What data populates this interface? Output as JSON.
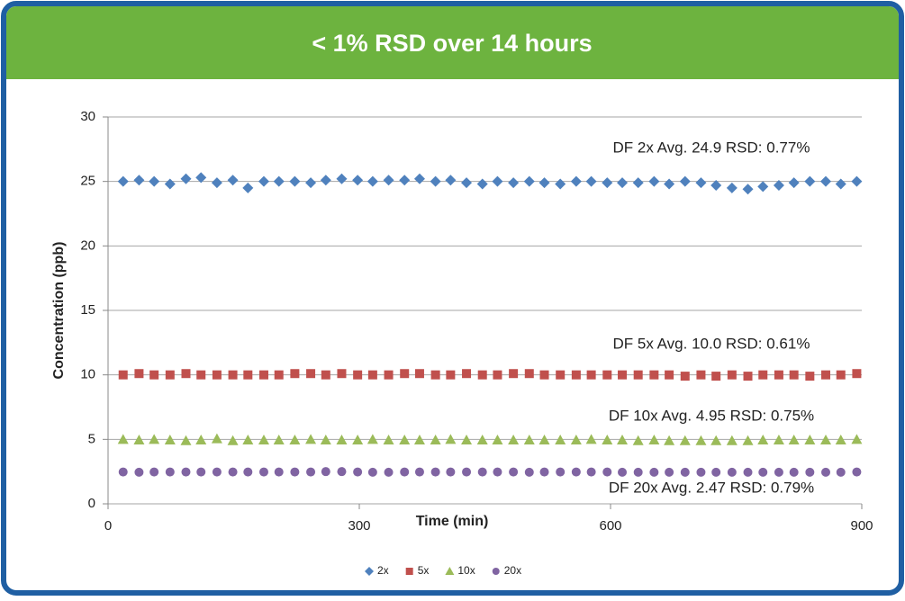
{
  "chart_data": {
    "type": "scatter",
    "title": "< 1% RSD over 14 hours",
    "xlabel": "Time (min)",
    "ylabel": "Concentration (ppb)",
    "x": [
      18,
      37,
      55,
      74,
      93,
      111,
      130,
      149,
      167,
      186,
      204,
      223,
      242,
      260,
      279,
      298,
      316,
      335,
      354,
      372,
      391,
      409,
      428,
      447,
      465,
      484,
      503,
      521,
      540,
      559,
      577,
      596,
      614,
      633,
      652,
      670,
      689,
      708,
      726,
      745,
      764,
      782,
      801,
      819,
      838,
      857,
      875,
      894
    ],
    "series": [
      {
        "name": "2x",
        "color": "#4f81bd",
        "marker": "diamond",
        "values": [
          25.0,
          25.1,
          25.0,
          24.8,
          25.2,
          25.3,
          24.9,
          25.1,
          24.5,
          25.0,
          25.0,
          25.0,
          24.9,
          25.1,
          25.2,
          25.1,
          25.0,
          25.1,
          25.1,
          25.2,
          25.0,
          25.1,
          24.9,
          24.8,
          25.0,
          24.9,
          25.0,
          24.9,
          24.8,
          25.0,
          25.0,
          24.9,
          24.9,
          24.9,
          25.0,
          24.8,
          25.0,
          24.9,
          24.7,
          24.5,
          24.4,
          24.6,
          24.7,
          24.9,
          25.0,
          25.0,
          24.8,
          25.0
        ]
      },
      {
        "name": "5x",
        "color": "#c0504d",
        "marker": "square",
        "values": [
          10.0,
          10.1,
          10.0,
          10.0,
          10.1,
          10.0,
          10.0,
          10.0,
          10.0,
          10.0,
          10.0,
          10.1,
          10.1,
          10.0,
          10.1,
          10.0,
          10.0,
          10.0,
          10.1,
          10.1,
          10.0,
          10.0,
          10.1,
          10.0,
          10.0,
          10.1,
          10.1,
          10.0,
          10.0,
          10.0,
          10.0,
          10.0,
          10.0,
          10.0,
          10.0,
          10.0,
          9.9,
          10.0,
          9.9,
          10.0,
          9.9,
          10.0,
          10.0,
          10.0,
          9.9,
          10.0,
          10.0,
          10.1
        ]
      },
      {
        "name": "10x",
        "color": "#9bbb59",
        "marker": "triangle",
        "values": [
          5.0,
          4.95,
          5.0,
          4.95,
          4.9,
          4.95,
          5.05,
          4.9,
          4.95,
          4.95,
          4.95,
          4.95,
          5.0,
          4.95,
          4.95,
          4.95,
          5.0,
          4.95,
          4.95,
          4.95,
          4.95,
          5.0,
          4.95,
          4.95,
          4.95,
          4.95,
          4.95,
          4.95,
          4.95,
          4.95,
          5.0,
          4.95,
          4.95,
          4.9,
          4.95,
          4.9,
          4.9,
          4.9,
          4.9,
          4.9,
          4.9,
          4.95,
          4.95,
          4.95,
          4.95,
          4.95,
          4.95,
          5.0
        ]
      },
      {
        "name": "20x",
        "color": "#8064a2",
        "marker": "circle",
        "values": [
          2.47,
          2.45,
          2.47,
          2.47,
          2.47,
          2.47,
          2.47,
          2.47,
          2.47,
          2.47,
          2.47,
          2.47,
          2.47,
          2.5,
          2.5,
          2.47,
          2.45,
          2.45,
          2.47,
          2.47,
          2.47,
          2.47,
          2.47,
          2.47,
          2.47,
          2.47,
          2.45,
          2.47,
          2.47,
          2.47,
          2.47,
          2.47,
          2.45,
          2.45,
          2.45,
          2.45,
          2.45,
          2.45,
          2.45,
          2.45,
          2.45,
          2.45,
          2.45,
          2.45,
          2.45,
          2.45,
          2.45,
          2.47
        ]
      }
    ],
    "annotations": [
      "DF 2x Avg. 24.9  RSD: 0.77%",
      "DF 5x Avg. 10.0 RSD: 0.61%",
      "DF 10x Avg. 4.95 RSD: 0.75%",
      "DF 20x Avg. 2.47  RSD: 0.79%"
    ],
    "xlim": [
      0,
      900
    ],
    "xticks": [
      0,
      300,
      600,
      900
    ],
    "ylim": [
      0,
      30
    ],
    "yticks": [
      0,
      5,
      10,
      15,
      20,
      25,
      30
    ],
    "grid": true,
    "legend": "bottom"
  }
}
